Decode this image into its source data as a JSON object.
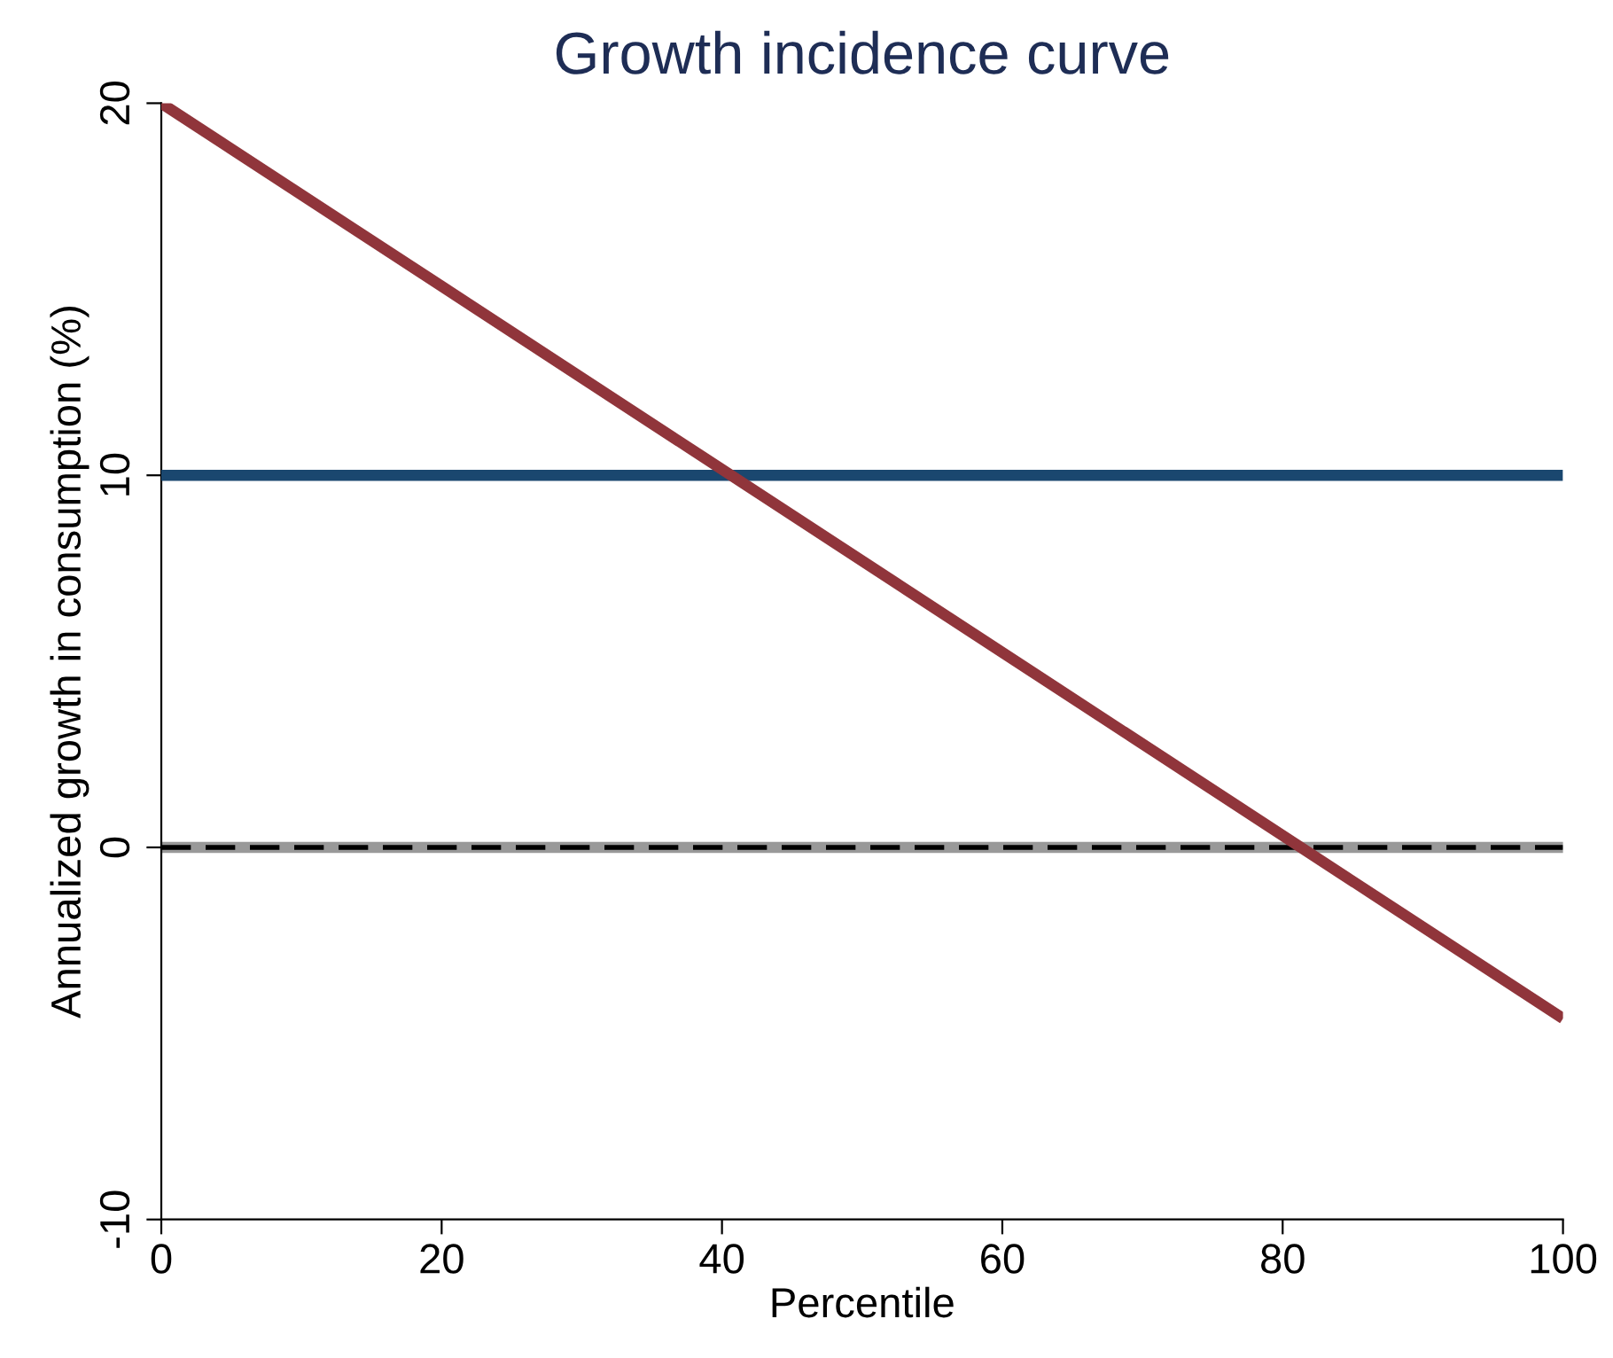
{
  "chart_data": {
    "type": "line",
    "title": "Growth incidence curve",
    "xlabel": "Percentile",
    "ylabel": "Annualized growth in consumption (%)",
    "x": [
      0,
      100
    ],
    "xlim": [
      0,
      100
    ],
    "xticks": [
      0,
      20,
      40,
      60,
      80,
      100
    ],
    "ylim": [
      -10,
      20
    ],
    "yticks": [
      -10,
      0,
      10,
      20
    ],
    "grid": false,
    "legend": false,
    "series": [
      {
        "color": "#1a476f",
        "values": [
          10,
          10
        ]
      },
      {
        "color": "#90353b",
        "values": [
          20,
          -4.6
        ]
      }
    ],
    "ref_lines": [
      {
        "axis": "y",
        "value": 0,
        "color": "#999999",
        "line_style": "solid"
      },
      {
        "axis": "y",
        "value": 0,
        "color": "#000000",
        "line_style": "dashed"
      }
    ]
  }
}
